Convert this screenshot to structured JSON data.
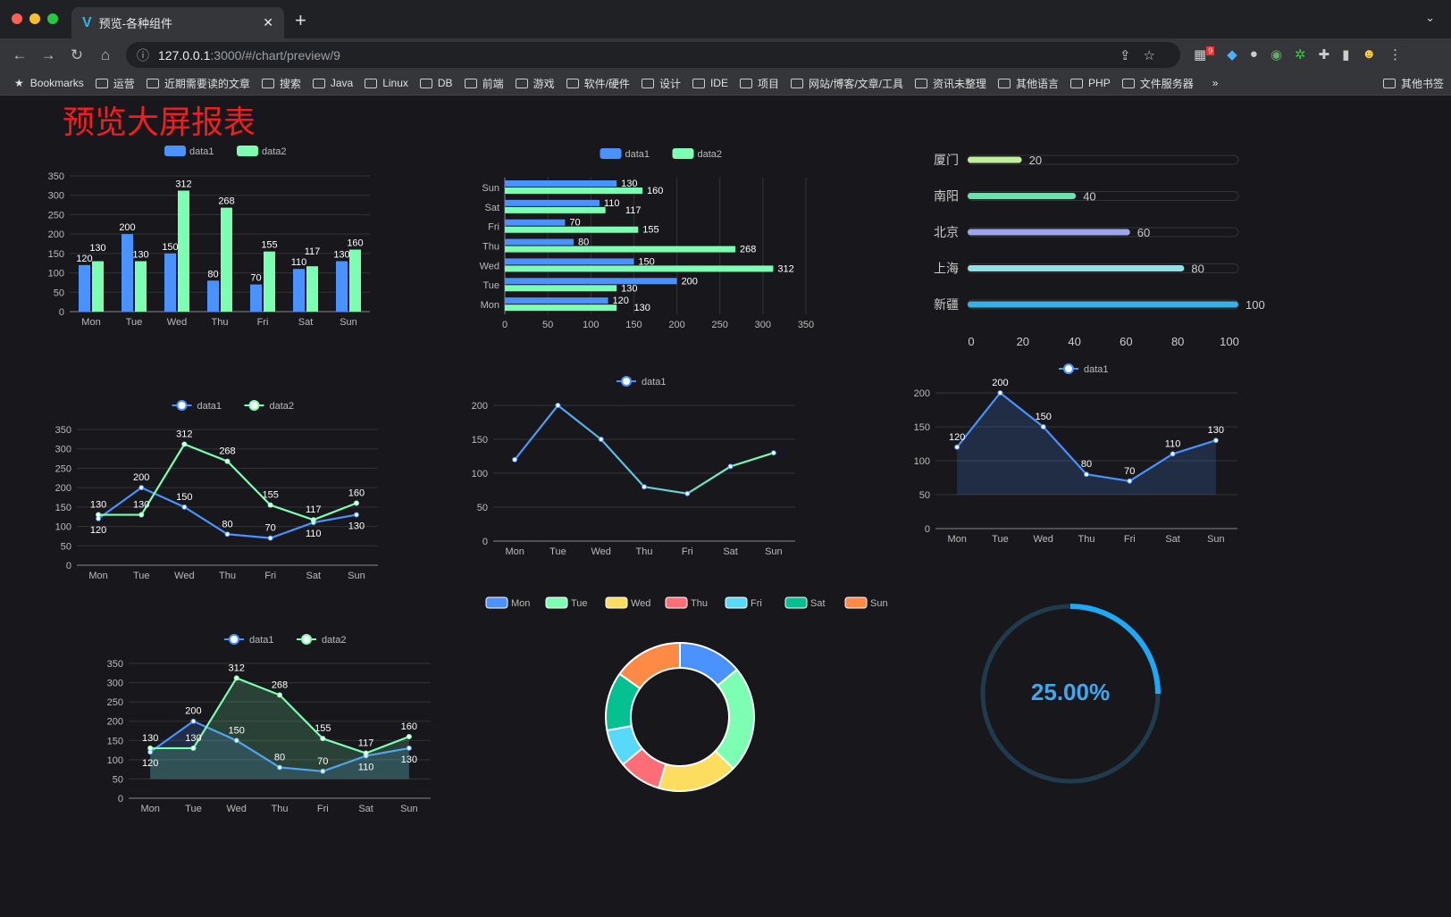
{
  "browser": {
    "tab_title": "预览-各种组件",
    "url_host": "127.0.0.1",
    "url_path": ":3000/#/chart/preview/9",
    "extension_badge": "9",
    "bookmarks": [
      "Bookmarks",
      "运营",
      "近期需要读的文章",
      "搜索",
      "Java",
      "Linux",
      "DB",
      "前端",
      "游戏",
      "软件/硬件",
      "设计",
      "IDE",
      "项目",
      "网站/博客/文章/工具",
      "资讯未整理",
      "其他语言",
      "PHP",
      "文件服务器"
    ],
    "overflow": "»",
    "other_bookmarks": "其他书签"
  },
  "page_title": "预览大屏报表",
  "colors": {
    "data1": "#4992ff",
    "data2": "#7cffb2",
    "title": "#f21e1e",
    "pie": [
      "#4992ff",
      "#7cffb2",
      "#fddd60",
      "#ff6e76",
      "#58d9f9",
      "#05c091",
      "#ff8a45"
    ],
    "progress": [
      "#c2ec9e",
      "#6ee0b0",
      "#9da6ea",
      "#90e0e8",
      "#37b0e8"
    ],
    "gauge": "#1fa8f6"
  },
  "chart_data": [
    {
      "type": "bar",
      "legend": [
        "data1",
        "data2"
      ],
      "categories": [
        "Mon",
        "Tue",
        "Wed",
        "Thu",
        "Fri",
        "Sat",
        "Sun"
      ],
      "series": [
        {
          "name": "data1",
          "values": [
            120,
            200,
            150,
            80,
            70,
            110,
            130
          ]
        },
        {
          "name": "data2",
          "values": [
            130,
            130,
            312,
            268,
            155,
            117,
            160
          ]
        }
      ],
      "ylim": [
        0,
        350
      ],
      "yticks": [
        0,
        50,
        100,
        150,
        200,
        250,
        300,
        350
      ],
      "grid": true,
      "legend_position": "top"
    },
    {
      "type": "bar",
      "orientation": "horizontal",
      "legend": [
        "data1",
        "data2"
      ],
      "categories": [
        "Mon",
        "Tue",
        "Wed",
        "Thu",
        "Fri",
        "Sat",
        "Sun"
      ],
      "series": [
        {
          "name": "data1",
          "values": [
            120,
            200,
            150,
            80,
            70,
            110,
            130
          ]
        },
        {
          "name": "data2",
          "values": [
            130,
            130,
            312,
            268,
            155,
            117,
            160
          ]
        }
      ],
      "xlim": [
        0,
        350
      ],
      "xticks": [
        0,
        50,
        100,
        150,
        200,
        250,
        300,
        350
      ],
      "grid": true,
      "legend_position": "top"
    },
    {
      "type": "bar",
      "variant": "progress",
      "categories": [
        "厦门",
        "南阳",
        "北京",
        "上海",
        "新疆"
      ],
      "values": [
        20,
        40,
        60,
        80,
        100
      ],
      "xlim": [
        0,
        100
      ],
      "xticks": [
        0,
        20,
        40,
        60,
        80,
        100
      ]
    },
    {
      "type": "line",
      "legend": [
        "data1",
        "data2"
      ],
      "categories": [
        "Mon",
        "Tue",
        "Wed",
        "Thu",
        "Fri",
        "Sat",
        "Sun"
      ],
      "series": [
        {
          "name": "data1",
          "values": [
            120,
            200,
            150,
            80,
            70,
            110,
            130
          ]
        },
        {
          "name": "data2",
          "values": [
            130,
            130,
            312,
            268,
            155,
            117,
            160
          ]
        }
      ],
      "ylim": [
        0,
        350
      ],
      "yticks": [
        0,
        50,
        100,
        150,
        200,
        250,
        300,
        350
      ],
      "grid": true,
      "legend_position": "top"
    },
    {
      "type": "line",
      "legend": [
        "data1"
      ],
      "categories": [
        "Mon",
        "Tue",
        "Wed",
        "Thu",
        "Fri",
        "Sat",
        "Sun"
      ],
      "series": [
        {
          "name": "data1",
          "values": [
            120,
            200,
            150,
            80,
            70,
            110,
            130
          ]
        }
      ],
      "ylim": [
        0,
        200
      ],
      "yticks": [
        0,
        50,
        100,
        150,
        200
      ],
      "grid": true,
      "legend_position": "top",
      "gradient_colors": [
        "#4992ff",
        "#7cffb2"
      ]
    },
    {
      "type": "area",
      "legend": [
        "data1"
      ],
      "categories": [
        "Mon",
        "Tue",
        "Wed",
        "Thu",
        "Fri",
        "Sat",
        "Sun"
      ],
      "series": [
        {
          "name": "data1",
          "values": [
            120,
            200,
            150,
            80,
            70,
            110,
            130
          ]
        }
      ],
      "ylim": [
        0,
        200
      ],
      "yticks": [
        0,
        50,
        100,
        150,
        200
      ],
      "grid": true,
      "legend_position": "top"
    },
    {
      "type": "area",
      "legend": [
        "data1",
        "data2"
      ],
      "categories": [
        "Mon",
        "Tue",
        "Wed",
        "Thu",
        "Fri",
        "Sat",
        "Sun"
      ],
      "series": [
        {
          "name": "data1",
          "values": [
            120,
            200,
            150,
            80,
            70,
            110,
            130
          ]
        },
        {
          "name": "data2",
          "values": [
            130,
            130,
            312,
            268,
            155,
            117,
            160
          ]
        }
      ],
      "ylim": [
        0,
        350
      ],
      "yticks": [
        0,
        50,
        100,
        150,
        200,
        250,
        300,
        350
      ],
      "grid": true,
      "legend_position": "top"
    },
    {
      "type": "pie",
      "variant": "donut",
      "legend": [
        "Mon",
        "Tue",
        "Wed",
        "Thu",
        "Fri",
        "Sat",
        "Sun"
      ],
      "values": [
        120,
        200,
        150,
        80,
        70,
        110,
        130
      ],
      "legend_position": "top"
    },
    {
      "type": "gauge",
      "value": 25,
      "label": "25.00%"
    }
  ]
}
